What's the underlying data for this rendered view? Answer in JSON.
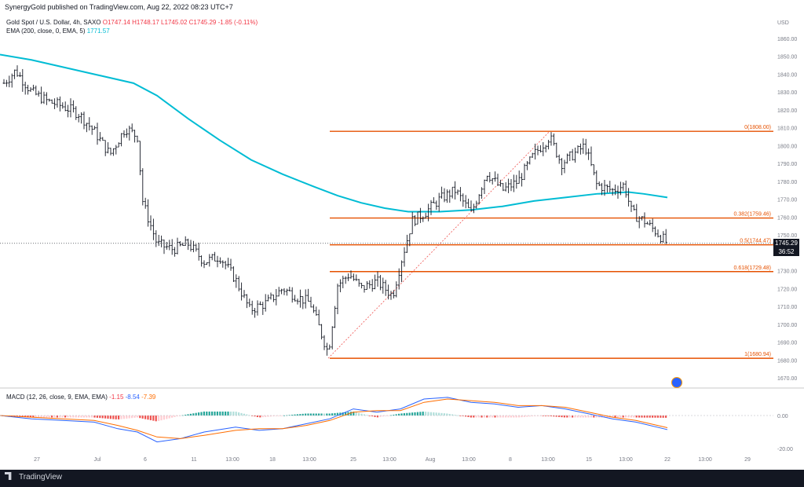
{
  "header": {
    "publisher": "SynergyGold published on TradingView.com, Aug 22, 2022 08:23 UTC+7",
    "symbol": "Gold Spot / U.S. Dollar, 4h, SAXO",
    "open": "O1747.14",
    "high": "H1748.17",
    "low": "L1745.02",
    "close": "C1745.29",
    "change": "-1.85 (-0.11%)",
    "ema_label": "EMA (200, close, 0, EMA, 5)",
    "ema_value": "1771.57",
    "macd_label": "MACD (12, 26, close, 9, EMA, EMA)",
    "macd_hist": "-1.15",
    "macd_line": "-8.54",
    "macd_signal": "-7.39"
  },
  "price_badge": {
    "price": "1745.29",
    "countdown": "36:52"
  },
  "footer": {
    "brand": "TradingView"
  },
  "colors": {
    "up": "#089981",
    "down": "#f23645",
    "ema": "#00bcd4",
    "fib": "#e65100",
    "macd": "#2962ff",
    "signal": "#ff6d00"
  },
  "chart_data": {
    "type": "candlestick",
    "currency": "USD",
    "ylim": [
      1665,
      1868
    ],
    "y_ticks": [
      "1860.00",
      "1850.00",
      "1840.00",
      "1830.00",
      "1820.00",
      "1810.00",
      "1800.00",
      "1790.00",
      "1780.00",
      "1770.00",
      "1760.00",
      "1750.00",
      "1740.00",
      "1730.00",
      "1720.00",
      "1710.00",
      "1700.00",
      "1690.00",
      "1680.00",
      "1670.00"
    ],
    "x_ticks": [
      "27",
      "Jul",
      "6",
      "11",
      "13:00",
      "18",
      "13:00",
      "25",
      "13:00",
      "Aug",
      "13:00",
      "8",
      "13:00",
      "15",
      "13:00",
      "22",
      "13:00",
      "29"
    ],
    "current_price": 1745.29,
    "fib_levels": [
      {
        "label": "0(1808.00)",
        "value": 1808.0
      },
      {
        "label": "0.382(1759.46)",
        "value": 1759.46
      },
      {
        "label": "0.5(1744.47)",
        "value": 1744.47
      },
      {
        "label": "0.618(1729.48)",
        "value": 1729.48
      },
      {
        "label": "1(1680.94)",
        "value": 1680.94
      }
    ],
    "ema_path": [
      [
        0,
        1851
      ],
      [
        40,
        1848
      ],
      [
        80,
        1844
      ],
      [
        120,
        1840
      ],
      [
        170,
        1835
      ],
      [
        200,
        1828
      ],
      [
        240,
        1815
      ],
      [
        280,
        1803
      ],
      [
        320,
        1792
      ],
      [
        360,
        1784
      ],
      [
        400,
        1777
      ],
      [
        430,
        1772
      ],
      [
        460,
        1768
      ],
      [
        490,
        1765
      ],
      [
        520,
        1763
      ],
      [
        560,
        1763
      ],
      [
        600,
        1764
      ],
      [
        640,
        1766
      ],
      [
        680,
        1769
      ],
      [
        720,
        1771
      ],
      [
        760,
        1773
      ],
      [
        800,
        1774
      ],
      [
        820,
        1773
      ],
      [
        850,
        1771
      ]
    ],
    "price_path": [
      [
        5,
        1835
      ],
      [
        20,
        1842
      ],
      [
        40,
        1830
      ],
      [
        60,
        1825
      ],
      [
        80,
        1822
      ],
      [
        100,
        1818
      ],
      [
        120,
        1808
      ],
      [
        140,
        1795
      ],
      [
        160,
        1810
      ],
      [
        175,
        1805
      ],
      [
        182,
        1768
      ],
      [
        200,
        1745
      ],
      [
        220,
        1742
      ],
      [
        240,
        1745
      ],
      [
        260,
        1735
      ],
      [
        280,
        1738
      ],
      [
        300,
        1725
      ],
      [
        318,
        1708
      ],
      [
        340,
        1712
      ],
      [
        360,
        1720
      ],
      [
        380,
        1715
      ],
      [
        395,
        1712
      ],
      [
        405,
        1700
      ],
      [
        418,
        1684
      ],
      [
        430,
        1722
      ],
      [
        445,
        1728
      ],
      [
        460,
        1720
      ],
      [
        480,
        1724
      ],
      [
        500,
        1716
      ],
      [
        512,
        1737
      ],
      [
        525,
        1758
      ],
      [
        540,
        1762
      ],
      [
        560,
        1770
      ],
      [
        580,
        1775
      ],
      [
        600,
        1762
      ],
      [
        620,
        1785
      ],
      [
        640,
        1775
      ],
      [
        660,
        1780
      ],
      [
        680,
        1795
      ],
      [
        700,
        1805
      ],
      [
        715,
        1790
      ],
      [
        730,
        1795
      ],
      [
        745,
        1800
      ],
      [
        760,
        1778
      ],
      [
        780,
        1775
      ],
      [
        795,
        1778
      ],
      [
        805,
        1762
      ],
      [
        820,
        1758
      ],
      [
        835,
        1752
      ],
      [
        850,
        1745.3
      ]
    ],
    "macd": {
      "y_ticks": [
        "0.00",
        "-20.00"
      ],
      "ylim": [
        -25,
        15
      ],
      "macd_path": [
        [
          0,
          0
        ],
        [
          40,
          -2
        ],
        [
          80,
          -3
        ],
        [
          120,
          -4
        ],
        [
          150,
          -8
        ],
        [
          175,
          -10
        ],
        [
          200,
          -16
        ],
        [
          230,
          -14
        ],
        [
          260,
          -10
        ],
        [
          300,
          -7
        ],
        [
          330,
          -9
        ],
        [
          360,
          -8
        ],
        [
          390,
          -5
        ],
        [
          420,
          -2
        ],
        [
          450,
          4
        ],
        [
          480,
          2
        ],
        [
          510,
          4
        ],
        [
          540,
          10
        ],
        [
          570,
          11
        ],
        [
          600,
          8
        ],
        [
          630,
          7
        ],
        [
          660,
          5
        ],
        [
          690,
          6
        ],
        [
          720,
          4
        ],
        [
          750,
          1
        ],
        [
          780,
          -2
        ],
        [
          810,
          -4
        ],
        [
          850,
          -8.54
        ]
      ],
      "signal_path": [
        [
          0,
          0
        ],
        [
          40,
          -1
        ],
        [
          80,
          -2
        ],
        [
          120,
          -3
        ],
        [
          150,
          -6
        ],
        [
          175,
          -9
        ],
        [
          200,
          -13
        ],
        [
          230,
          -14
        ],
        [
          260,
          -12
        ],
        [
          300,
          -9
        ],
        [
          330,
          -8
        ],
        [
          360,
          -8
        ],
        [
          390,
          -6
        ],
        [
          420,
          -3
        ],
        [
          450,
          2
        ],
        [
          480,
          3
        ],
        [
          510,
          3
        ],
        [
          540,
          8
        ],
        [
          570,
          10
        ],
        [
          600,
          9
        ],
        [
          630,
          8
        ],
        [
          660,
          6
        ],
        [
          690,
          6
        ],
        [
          720,
          5
        ],
        [
          750,
          2
        ],
        [
          780,
          -1
        ],
        [
          810,
          -3
        ],
        [
          850,
          -7.39
        ]
      ]
    }
  }
}
